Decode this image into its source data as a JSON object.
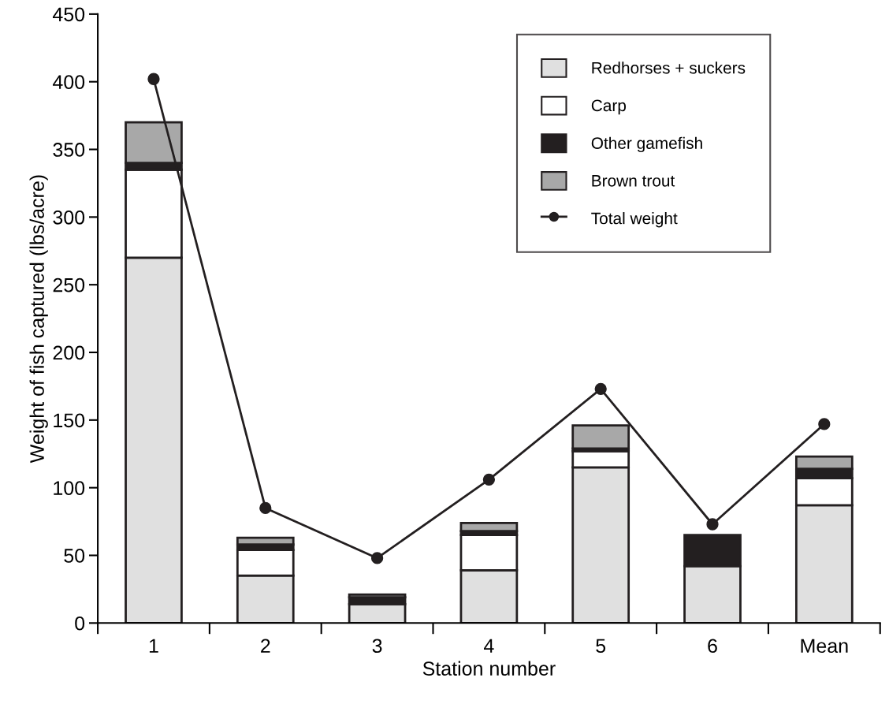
{
  "chart_data": {
    "type": "bar",
    "stacked": true,
    "xlabel": "Station number",
    "ylabel": "Weight of fish captured (lbs/acre)",
    "categories": [
      "1",
      "2",
      "3",
      "4",
      "5",
      "6",
      "Mean"
    ],
    "series": [
      {
        "name": "Redhorses + suckers",
        "color": "#e0e0e0",
        "values": [
          270,
          35,
          14,
          39,
          115,
          42,
          87
        ]
      },
      {
        "name": "Carp",
        "color": "#ffffff",
        "values": [
          65,
          19,
          0,
          26,
          12,
          0,
          20
        ]
      },
      {
        "name": "Other gamefish",
        "color": "#231f20",
        "values": [
          5,
          4,
          5,
          3,
          2,
          23,
          7
        ]
      },
      {
        "name": "Brown trout",
        "color": "#a8a8a8",
        "values": [
          30,
          5,
          2,
          6,
          17,
          0,
          9
        ]
      },
      {
        "name": "Total weight",
        "type": "line",
        "color": "#231f20",
        "marker": "circle",
        "values": [
          402,
          85,
          48,
          106,
          173,
          73,
          147
        ]
      }
    ],
    "ylim": [
      0,
      450
    ],
    "yticks": [
      0,
      50,
      100,
      150,
      200,
      250,
      300,
      350,
      400,
      450
    ],
    "grid": false,
    "legend": "top right"
  }
}
